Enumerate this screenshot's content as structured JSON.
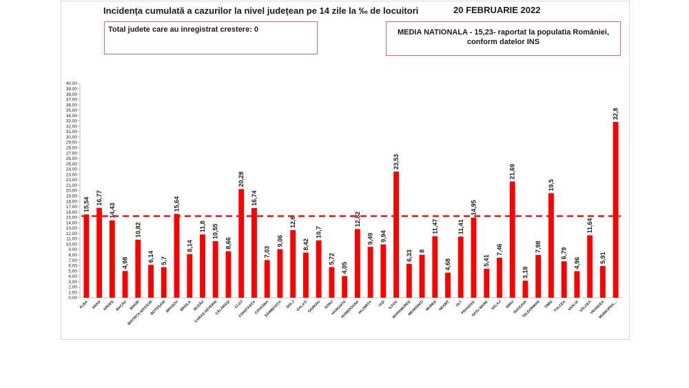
{
  "header": {
    "title": "Incidența cumulată a cazurilor la nivel județean pe 14 zile la ‰ de locuitori",
    "date": "20 FEBRUARIE 2022"
  },
  "info_box_left": {
    "text": "Total judete care au inregistrat crestere: 0"
  },
  "info_box_right": {
    "line1": "MEDIA NATIONALA - 15,23-  raportat la populatia României,",
    "line2": "conform datelor INS"
  },
  "colors": {
    "bar": "#ff0000",
    "reference_line": "#ff0000"
  },
  "chart_data": {
    "type": "bar",
    "categories": [
      "ALBA",
      "ARAD",
      "ARGEȘ",
      "BACĂU",
      "BIHOR",
      "BISTRIȚA-NĂSĂUD",
      "BOTOȘANI",
      "BRAȘOV",
      "BRĂILA",
      "BUZĂU",
      "CARAȘ-SEVERIN",
      "CĂLĂRAȘI",
      "CLUJ",
      "CONSTANȚA",
      "COVASNA",
      "DÂMBOVIȚA",
      "DOLJ",
      "GALAȚI",
      "GIURGIU",
      "GORJ",
      "HARGHITA",
      "HUNEDOARA",
      "IALOMIȚA",
      "IAȘI",
      "ILFOV",
      "MARAMUREȘ",
      "MEHEDINȚI",
      "MUREȘ",
      "NEAMȚ",
      "OLT",
      "PRAHOVA",
      "SATU MARE",
      "SĂLAJ",
      "SIBIU",
      "SUCEAVA",
      "TELEORMAN",
      "TIMIȘ",
      "TULCEA",
      "VASLUI",
      "VÂLCEA",
      "VRANCEA",
      "MUNICIPIUL..."
    ],
    "values": [
      15.54,
      16.77,
      14.43,
      4.98,
      10.82,
      6.14,
      5.7,
      15.64,
      8.14,
      11.8,
      10.55,
      8.66,
      20.28,
      16.74,
      7.03,
      9.06,
      12.6,
      8.42,
      10.7,
      5.72,
      4.05,
      12.82,
      9.49,
      9.94,
      23.53,
      6.33,
      8,
      11.47,
      4.68,
      11.41,
      14.95,
      5.41,
      7.46,
      21.69,
      3.18,
      7.98,
      19.5,
      6.79,
      4.96,
      11.64,
      5.91,
      32.8
    ],
    "value_labels": [
      "15,54",
      "16,77",
      "14,43",
      "4,98",
      "10,82",
      "6,14",
      "5,7",
      "15,64",
      "8,14",
      "11,8",
      "10,55",
      "8,66",
      "20,28",
      "16,74",
      "7,03",
      "9,06",
      "12,6",
      "8,42",
      "10,7",
      "5,72",
      "4,05",
      "12,82",
      "9,49",
      "9,94",
      "23,53",
      "6,33",
      "8",
      "11,47",
      "4,68",
      "11,41",
      "14,95",
      "5,41",
      "7,46",
      "21,69",
      "3,18",
      "7,98",
      "19,5",
      "6,79",
      "4,96",
      "11,64",
      "5,91",
      "32,8"
    ],
    "ylim": [
      0,
      40
    ],
    "ytick_step": 1,
    "ytick_labels": [
      "0,00",
      "1,00",
      "2,00",
      "3,00",
      "4,00",
      "5,00",
      "6,00",
      "7,00",
      "8,00",
      "9,00",
      "10,00",
      "11,00",
      "12,00",
      "13,00",
      "14,00",
      "15,00",
      "16,00",
      "17,00",
      "18,00",
      "19,00",
      "20,00",
      "21,00",
      "22,00",
      "23,00",
      "24,00",
      "25,00",
      "26,00",
      "27,00",
      "28,00",
      "29,00",
      "30,00",
      "31,00",
      "32,00",
      "33,00",
      "34,00",
      "35,00",
      "36,00",
      "37,00",
      "38,00",
      "39,00",
      "40,00"
    ],
    "reference_line": {
      "value": 15.23,
      "style": "dashed"
    },
    "grid": false,
    "legend": "none"
  }
}
